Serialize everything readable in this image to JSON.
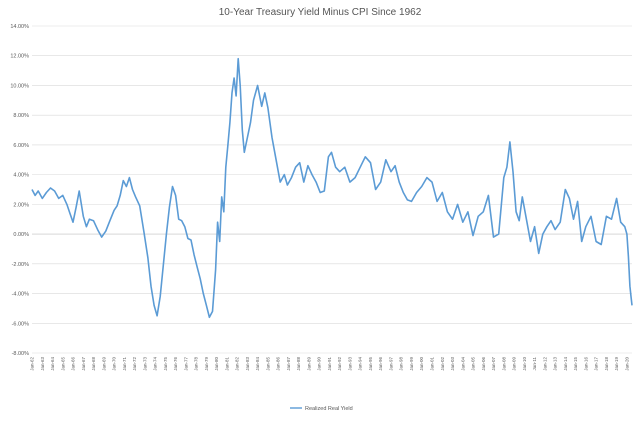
{
  "chart_data": {
    "type": "line",
    "title": "10-Year Treasury Yield Minus CPI Since 1962",
    "xlabel": "",
    "ylabel": "",
    "ylim": [
      -8,
      14
    ],
    "ytick_step": 2,
    "y_format": "percent_2dp",
    "grid": "horizontal",
    "legend_position": "bottom-center",
    "x_start": 1962,
    "x_end": 2020.5,
    "x_ticks": [
      "Jan-62",
      "Jan-63",
      "Jan-64",
      "Jan-65",
      "Jan-66",
      "Jan-67",
      "Jan-68",
      "Jan-69",
      "Jan-70",
      "Jan-71",
      "Jan-72",
      "Jan-73",
      "Jan-74",
      "Jan-75",
      "Jan-76",
      "Jan-77",
      "Jan-78",
      "Jan-79",
      "Jan-80",
      "Jan-81",
      "Jan-82",
      "Jan-83",
      "Jan-84",
      "Jan-85",
      "Jan-86",
      "Jan-87",
      "Jan-88",
      "Jan-89",
      "Jan-90",
      "Jan-91",
      "Jan-92",
      "Jan-93",
      "Jan-94",
      "Jan-95",
      "Jan-96",
      "Jan-97",
      "Jan-98",
      "Jan-99",
      "Jan-00",
      "Jan-01",
      "Jan-02",
      "Jan-03",
      "Jan-04",
      "Jan-05",
      "Jan-06",
      "Jan-07",
      "Jan-08",
      "Jan-09",
      "Jan-10",
      "Jan-11",
      "Jan-12",
      "Jan-13",
      "Jan-14",
      "Jan-15",
      "Jan-16",
      "Jan-17",
      "Jan-18",
      "Jan-19",
      "Jan-20"
    ],
    "series": [
      {
        "name": "Realized Real Yield",
        "color": "#5b9bd5",
        "x": [
          1962.0,
          1962.3,
          1962.6,
          1963.0,
          1963.4,
          1963.8,
          1964.2,
          1964.6,
          1965.0,
          1965.4,
          1965.7,
          1966.0,
          1966.3,
          1966.6,
          1967.0,
          1967.3,
          1967.6,
          1968.0,
          1968.4,
          1968.8,
          1969.2,
          1969.6,
          1970.0,
          1970.3,
          1970.6,
          1970.9,
          1971.2,
          1971.5,
          1971.8,
          1972.1,
          1972.5,
          1972.9,
          1973.3,
          1973.6,
          1973.9,
          1974.2,
          1974.5,
          1974.8,
          1975.1,
          1975.4,
          1975.7,
          1976.0,
          1976.3,
          1976.6,
          1976.9,
          1977.2,
          1977.5,
          1977.8,
          1978.1,
          1978.4,
          1978.7,
          1979.0,
          1979.3,
          1979.6,
          1979.9,
          1980.1,
          1980.3,
          1980.5,
          1980.7,
          1980.9,
          1981.1,
          1981.3,
          1981.5,
          1981.7,
          1981.9,
          1982.1,
          1982.3,
          1982.5,
          1982.7,
          1983.0,
          1983.3,
          1983.6,
          1984.0,
          1984.4,
          1984.7,
          1985.0,
          1985.4,
          1985.8,
          1986.2,
          1986.6,
          1986.9,
          1987.3,
          1987.7,
          1988.1,
          1988.5,
          1988.9,
          1989.3,
          1989.7,
          1990.1,
          1990.5,
          1990.9,
          1991.2,
          1991.6,
          1992.0,
          1992.5,
          1993.0,
          1993.5,
          1994.0,
          1994.5,
          1995.0,
          1995.5,
          1996.0,
          1996.5,
          1997.0,
          1997.4,
          1997.8,
          1998.2,
          1998.6,
          1999.0,
          1999.5,
          2000.0,
          2000.5,
          2001.0,
          2001.5,
          2002.0,
          2002.5,
          2003.0,
          2003.5,
          2004.0,
          2004.5,
          2005.0,
          2005.5,
          2006.0,
          2006.5,
          2007.0,
          2007.5,
          2008.0,
          2008.3,
          2008.6,
          2008.9,
          2009.2,
          2009.5,
          2009.8,
          2010.2,
          2010.6,
          2011.0,
          2011.4,
          2011.8,
          2012.2,
          2012.6,
          2013.0,
          2013.5,
          2014.0,
          2014.4,
          2014.8,
          2015.2,
          2015.6,
          2016.0,
          2016.5,
          2017.0,
          2017.5,
          2018.0,
          2018.5,
          2019.0,
          2019.4,
          2019.8,
          2020.0,
          2020.15,
          2020.3,
          2020.4,
          2020.5
        ],
        "values": [
          3.0,
          2.6,
          2.9,
          2.4,
          2.8,
          3.1,
          2.9,
          2.4,
          2.6,
          2.0,
          1.4,
          0.8,
          1.8,
          2.9,
          1.2,
          0.5,
          1.0,
          0.9,
          0.3,
          -0.2,
          0.2,
          0.9,
          1.6,
          1.9,
          2.6,
          3.6,
          3.2,
          3.8,
          3.0,
          2.5,
          1.9,
          0.2,
          -1.6,
          -3.5,
          -4.8,
          -5.5,
          -4.2,
          -2.1,
          0.0,
          1.8,
          3.2,
          2.6,
          1.0,
          0.9,
          0.5,
          -0.3,
          -0.4,
          -1.4,
          -2.2,
          -3.0,
          -4.0,
          -4.8,
          -5.6,
          -5.2,
          -2.4,
          0.8,
          -0.5,
          2.5,
          1.5,
          4.5,
          6.0,
          7.5,
          9.5,
          10.5,
          9.3,
          11.8,
          10.0,
          7.0,
          5.5,
          6.5,
          7.5,
          9.0,
          10.0,
          8.6,
          9.5,
          8.5,
          6.5,
          5.0,
          3.5,
          4.0,
          3.3,
          3.8,
          4.5,
          4.8,
          3.5,
          4.6,
          4.0,
          3.5,
          2.8,
          2.9,
          5.2,
          5.5,
          4.5,
          4.2,
          4.5,
          3.5,
          3.8,
          4.5,
          5.2,
          4.8,
          3.0,
          3.5,
          5.0,
          4.2,
          4.6,
          3.5,
          2.8,
          2.3,
          2.2,
          2.8,
          3.2,
          3.8,
          3.5,
          2.2,
          2.8,
          1.5,
          1.0,
          2.0,
          0.8,
          1.5,
          -0.1,
          1.2,
          1.5,
          2.6,
          -0.2,
          0.0,
          3.8,
          4.5,
          6.2,
          4.2,
          1.5,
          0.9,
          2.5,
          1.0,
          -0.5,
          0.5,
          -1.3,
          0.0,
          0.5,
          0.9,
          0.3,
          0.8,
          3.0,
          2.4,
          1.0,
          2.2,
          -0.5,
          0.5,
          1.2,
          -0.5,
          -0.7,
          1.2,
          1.0,
          2.4,
          0.8,
          0.5,
          0.0,
          -1.5,
          -3.5,
          -4.2,
          -4.8
        ]
      }
    ]
  }
}
